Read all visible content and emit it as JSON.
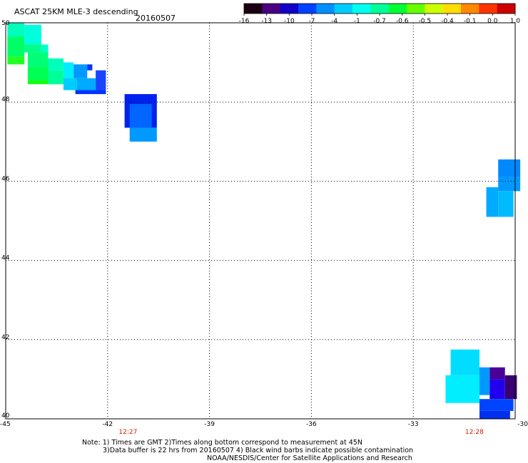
{
  "header": {
    "title": "ASCAT 25KM MLE-3 descending",
    "date": "20160507"
  },
  "colorbar": {
    "colors": [
      "#1a0010",
      "#4b0080",
      "#1200c8",
      "#0040ff",
      "#0090ff",
      "#00ccff",
      "#00ffee",
      "#00ff99",
      "#00ff33",
      "#66ff00",
      "#ccff00",
      "#ffdd00",
      "#ff8800",
      "#ff3300",
      "#cc0000"
    ],
    "labels": [
      "-16",
      "-13",
      "-10",
      "-7",
      "-4",
      "-1",
      "-0.7",
      "-0.6",
      "-0.5",
      "-0.4",
      "-0.1",
      "0.0",
      "1.0"
    ]
  },
  "axes": {
    "x_ticks": [
      "-45",
      "-42",
      "-39",
      "-36",
      "-33",
      "-30"
    ],
    "y_ticks": [
      "50",
      "48",
      "46",
      "44",
      "42",
      "40"
    ]
  },
  "time_labels": [
    "12:27",
    "12:28"
  ],
  "notes": {
    "line1": "Note: 1) Times are GMT 2)Times along bottom correspond to measurement at 45N",
    "line2": "3)Data buffer is 22 hrs from 20160507 4) Black wind barbs indicate possible contamination",
    "line3": "NOAA/NESDIS/Center for Satellite Applications and Research"
  },
  "map": {
    "lon_range": [
      -45,
      -30
    ],
    "lat_range": [
      40,
      50
    ],
    "grid": true,
    "cells": [
      {
        "lon0": -44.95,
        "lon1": -44.45,
        "lat0": 49.65,
        "lat1": 50.0,
        "color": "#00ffbb"
      },
      {
        "lon0": -44.45,
        "lon1": -43.95,
        "lat0": 49.45,
        "lat1": 49.95,
        "color": "#00ffdd"
      },
      {
        "lon0": -44.95,
        "lon1": -44.45,
        "lat0": 49.15,
        "lat1": 49.65,
        "color": "#00ff66"
      },
      {
        "lon0": -44.95,
        "lon1": -44.45,
        "lat0": 48.95,
        "lat1": 49.15,
        "color": "#22ff22"
      },
      {
        "lon0": -44.45,
        "lon1": -43.95,
        "lat0": 49.25,
        "lat1": 49.45,
        "color": "#00ff88"
      },
      {
        "lon0": -43.95,
        "lon1": -43.75,
        "lat0": 49.15,
        "lat1": 49.45,
        "color": "#00ffcc"
      },
      {
        "lon0": -44.35,
        "lon1": -43.75,
        "lat0": 48.9,
        "lat1": 49.25,
        "color": "#00ff77"
      },
      {
        "lon0": -44.35,
        "lon1": -43.75,
        "lat0": 48.55,
        "lat1": 48.9,
        "color": "#00ff55"
      },
      {
        "lon0": -44.35,
        "lon1": -43.45,
        "lat0": 48.45,
        "lat1": 48.55,
        "color": "#11ff11"
      },
      {
        "lon0": -43.75,
        "lon1": -43.3,
        "lat0": 48.8,
        "lat1": 49.1,
        "color": "#00ffbb"
      },
      {
        "lon0": -43.75,
        "lon1": -43.3,
        "lat0": 48.45,
        "lat1": 48.8,
        "color": "#00ff99"
      },
      {
        "lon0": -43.3,
        "lon1": -43.0,
        "lat0": 48.6,
        "lat1": 49.0,
        "color": "#00eeff"
      },
      {
        "lon0": -43.3,
        "lon1": -42.9,
        "lat0": 48.3,
        "lat1": 48.6,
        "color": "#00ccff"
      },
      {
        "lon0": -43.0,
        "lon1": -42.6,
        "lat0": 48.6,
        "lat1": 48.95,
        "color": "#0099ff"
      },
      {
        "lon0": -42.6,
        "lon1": -42.45,
        "lat0": 48.8,
        "lat1": 48.95,
        "color": "#0033ff"
      },
      {
        "lon0": -42.9,
        "lon1": -42.35,
        "lat0": 48.3,
        "lat1": 48.6,
        "color": "#00aaff"
      },
      {
        "lon0": -42.35,
        "lon1": -42.05,
        "lat0": 48.3,
        "lat1": 48.8,
        "color": "#1a44ff"
      },
      {
        "lon0": -42.95,
        "lon1": -42.05,
        "lat0": 48.2,
        "lat1": 48.3,
        "color": "#0033ff"
      },
      {
        "lon0": -41.5,
        "lon1": -40.55,
        "lat0": 47.35,
        "lat1": 48.2,
        "color": "#0022ee"
      },
      {
        "lon0": -41.35,
        "lon1": -40.7,
        "lat0": 47.35,
        "lat1": 47.95,
        "color": "#0066ff"
      },
      {
        "lon0": -41.35,
        "lon1": -40.55,
        "lat0": 47.0,
        "lat1": 47.35,
        "color": "#0099ff"
      },
      {
        "lon0": -30.5,
        "lon1": -29.85,
        "lat0": 46.1,
        "lat1": 46.55,
        "color": "#0088ff"
      },
      {
        "lon0": -30.5,
        "lon1": -29.85,
        "lat0": 45.75,
        "lat1": 46.1,
        "color": "#0099ff"
      },
      {
        "lon0": -30.85,
        "lon1": -30.5,
        "lat0": 45.1,
        "lat1": 45.85,
        "color": "#00aaff"
      },
      {
        "lon0": -30.5,
        "lon1": -30.05,
        "lat0": 45.1,
        "lat1": 45.75,
        "color": "#00bbff"
      },
      {
        "lon0": -31.9,
        "lon1": -31.05,
        "lat0": 41.1,
        "lat1": 41.75,
        "color": "#00ddff"
      },
      {
        "lon0": -32.05,
        "lon1": -31.05,
        "lat0": 40.4,
        "lat1": 41.1,
        "color": "#00eeff"
      },
      {
        "lon0": -31.05,
        "lon1": -30.75,
        "lat0": 40.6,
        "lat1": 41.3,
        "color": "#0099ff"
      },
      {
        "lon0": -30.75,
        "lon1": -30.3,
        "lat0": 41.0,
        "lat1": 41.3,
        "color": "#4b0099"
      },
      {
        "lon0": -30.75,
        "lon1": -30.3,
        "lat0": 40.5,
        "lat1": 41.0,
        "color": "#2200ee"
      },
      {
        "lon0": -30.3,
        "lon1": -29.95,
        "lat0": 40.5,
        "lat1": 41.1,
        "color": "#3a0070"
      },
      {
        "lon0": -31.05,
        "lon1": -30.05,
        "lat0": 40.2,
        "lat1": 40.5,
        "color": "#0044ff"
      },
      {
        "lon0": -31.05,
        "lon1": -30.15,
        "lat0": 40.0,
        "lat1": 40.2,
        "color": "#0030ee"
      }
    ]
  }
}
